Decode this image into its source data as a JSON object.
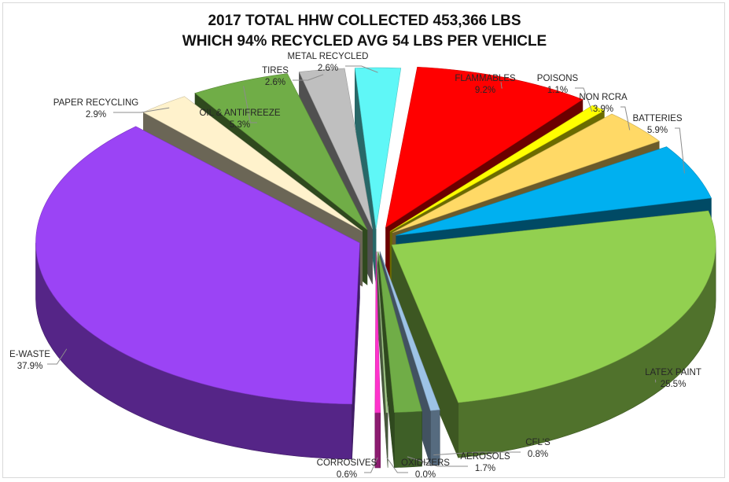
{
  "chart_data": {
    "type": "pie",
    "title": [
      "2017 TOTAL HHW COLLECTED 453,366 LBS",
      "WHICH 94% RECYCLED AVG 54 LBS PER VEHICLE"
    ],
    "style": "3d-exploded",
    "legend": "none",
    "slices": [
      {
        "name": "FLAMMABLES",
        "value": 9.2,
        "label": "9.2%",
        "color": "#ff0000"
      },
      {
        "name": "POISONS",
        "value": 1.1,
        "label": "1.1%",
        "color": "#ffff00"
      },
      {
        "name": "NON RCRA",
        "value": 3.9,
        "label": "3.9%",
        "color": "#ffd966"
      },
      {
        "name": "BATTERIES",
        "value": 5.9,
        "label": "5.9%",
        "color": "#00b0f0"
      },
      {
        "name": "LATEX PAINT",
        "value": 25.5,
        "label": "25.5%",
        "color": "#92d050"
      },
      {
        "name": "CFL'S",
        "value": 0.8,
        "label": "0.8%",
        "color": "#9dc3e6"
      },
      {
        "name": "AEROSOLS",
        "value": 1.7,
        "label": "1.7%",
        "color": "#70ad47"
      },
      {
        "name": "OXIDIZERS",
        "value": 0.0,
        "label": "0.0%",
        "color": "#a9d18e"
      },
      {
        "name": "CORROSIVES",
        "value": 0.6,
        "label": "0.6%",
        "color": "#ff33cc"
      },
      {
        "name": "E-WASTE",
        "value": 37.9,
        "label": "37.9%",
        "color": "#9b44f5"
      },
      {
        "name": "PAPER RECYCLING",
        "value": 2.9,
        "label": "2.9%",
        "color": "#fff2cc"
      },
      {
        "name": "OIL & ANTIFREEZE",
        "value": 5.3,
        "label": "5.3%",
        "color": "#70ad47"
      },
      {
        "name": "TIRES",
        "value": 2.6,
        "label": "2.6%",
        "color": "#bfbfbf"
      },
      {
        "name": "METAL RECYCLED",
        "value": 2.6,
        "label": "2.6%",
        "color": "#5ff7f7"
      }
    ]
  }
}
